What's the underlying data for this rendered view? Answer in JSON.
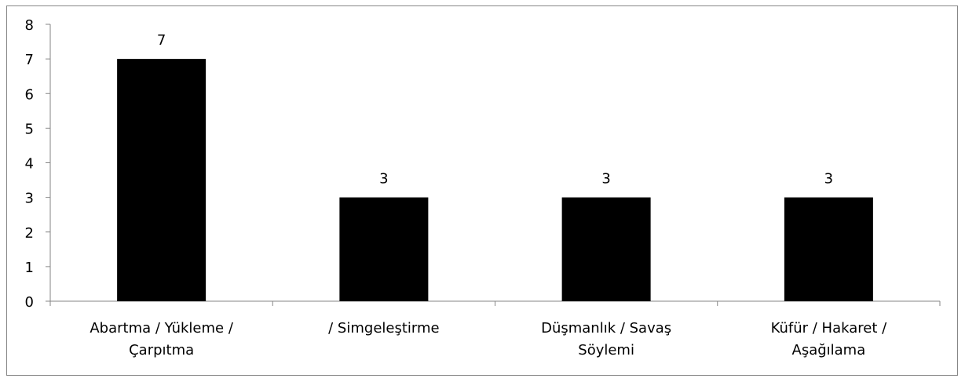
{
  "chart_data": {
    "type": "bar",
    "title": "",
    "xlabel": "",
    "ylabel": "",
    "categories": [
      [
        "Abartma / Yükleme /",
        "Çarpıtma"
      ],
      [
        "/ Simgeleştirme"
      ],
      [
        "Düşmanlık / Savaş",
        "Söylemi"
      ],
      [
        "Küfür / Hakaret /",
        "Aşağılama"
      ]
    ],
    "values": [
      7,
      3,
      3,
      3
    ],
    "data_labels": [
      "7",
      "3",
      "3",
      "3"
    ],
    "ylim": [
      0,
      8
    ],
    "yticks": [
      0,
      1,
      2,
      3,
      4,
      5,
      6,
      7,
      8
    ],
    "grid": false,
    "legend": "none",
    "bar_color": "#000000",
    "axis_color": "#868686"
  }
}
